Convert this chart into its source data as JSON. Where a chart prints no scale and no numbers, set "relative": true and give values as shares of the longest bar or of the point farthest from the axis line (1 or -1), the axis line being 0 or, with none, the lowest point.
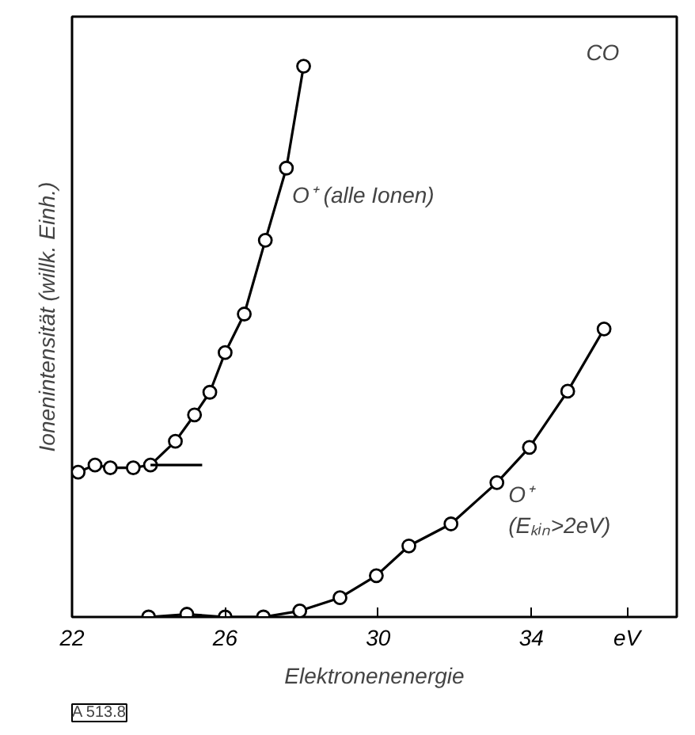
{
  "chart_data": {
    "type": "line",
    "relative": true,
    "marker": "circle",
    "line_style": "solid",
    "xlabel": "Elektronenenergie",
    "ylabel": "Ionenintensität (willk. Einh.)",
    "xlim": [
      22,
      37.8
    ],
    "xticks": [
      22,
      26,
      30,
      34,
      {
        "value": 36.5,
        "label": "eV"
      }
    ],
    "tick_labels": "x",
    "grid": false,
    "legend": false,
    "annotations": [
      "CO",
      "A 513.8"
    ],
    "series": [
      {
        "name": "O⁺ (alle Ionen)",
        "color": "#000000",
        "x": [
          22.16,
          22.6,
          23.0,
          23.6,
          24.05,
          24.7,
          25.2,
          25.6,
          26.0,
          26.5,
          27.05,
          27.6,
          28.05
        ],
        "values": [
          0.263,
          0.276,
          0.271,
          0.271,
          0.276,
          0.319,
          0.367,
          0.408,
          0.48,
          0.55,
          0.684,
          0.815,
          1.0
        ]
      },
      {
        "name": "O⁺ (Eₖᵢₙ>2eV)",
        "color": "#000000",
        "x": [
          24.0,
          25.0,
          26.0,
          27.0,
          27.95,
          29.0,
          29.95,
          30.8,
          31.9,
          33.1,
          33.95,
          34.95,
          35.9
        ],
        "values": [
          0.0,
          0.005,
          0.0,
          0.0,
          0.011,
          0.035,
          0.075,
          0.129,
          0.169,
          0.244,
          0.308,
          0.41,
          0.523
        ]
      },
      {
        "color": "#000000",
        "marker": "none",
        "x": [
          24.05,
          25.4
        ],
        "values": [
          0.276,
          0.276
        ]
      }
    ]
  }
}
